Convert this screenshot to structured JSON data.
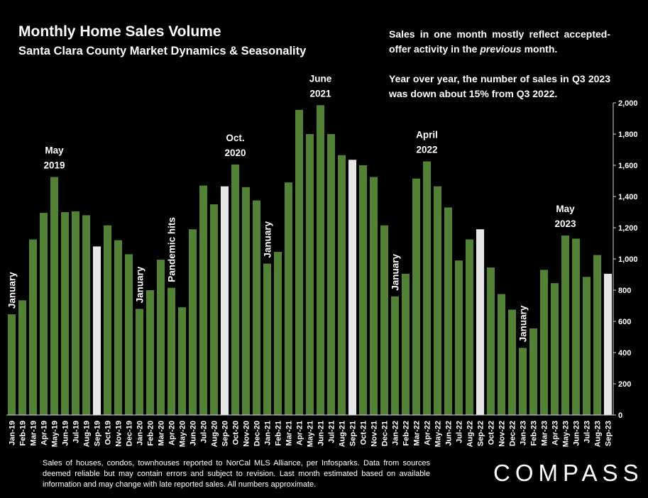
{
  "title": "Monthly Home Sales Volume",
  "subtitle": "Santa Clara County Market Dynamics & Seasonality",
  "note": {
    "p1_before": "Sales in one month mostly reflect accepted-offer activity in the ",
    "p1_em": "previous",
    "p1_after": " month.",
    "p2": "Year over year, the number of sales in Q3 2023 was down about 15% from Q3 2022."
  },
  "footnote": "Sales of houses, condos, townhouses reported to NorCal MLS Alliance, per Infosparks. Data from sources deemed reliable but may contain errors and subject to revision. Last month estimated based on available information and may change with late reported sales. All numbers approximate.",
  "brand": "COMPASS",
  "colors": {
    "bar": "#538135",
    "highlight": "#e6e6e6",
    "background": "#000000"
  },
  "chart_data": {
    "type": "bar",
    "title": "Monthly Home Sales Volume",
    "subtitle": "Santa Clara County Market Dynamics & Seasonality",
    "xlabel": "",
    "ylabel": "",
    "ylim": [
      0,
      2000
    ],
    "yticks": [
      "0",
      "200",
      "400",
      "600",
      "800",
      "1,000",
      "1,200",
      "1,400",
      "1,600",
      "1,800",
      "2,000"
    ],
    "grid": false,
    "axis_position": "right",
    "categories": [
      "Jan-19",
      "Feb-19",
      "Mar-19",
      "Apr-19",
      "May-19",
      "Jun-19",
      "Jul-19",
      "Aug-19",
      "Sep-19",
      "Oct-19",
      "Nov-19",
      "Dec-19",
      "Jan-20",
      "Feb-20",
      "Mar-20",
      "Apr-20",
      "May-20",
      "Jun-20",
      "Jul-20",
      "Aug-20",
      "Sep-20",
      "Oct-20",
      "Nov-20",
      "Dec-20",
      "Jan-21",
      "Feb-21",
      "Mar-21",
      "Apr-21",
      "May-21",
      "Jun-21",
      "Jul-21",
      "Aug-21",
      "Sep-21",
      "Oct-21",
      "Nov-21",
      "Dec-21",
      "Jan-22",
      "Feb-22",
      "Mar-22",
      "Apr-22",
      "May-22",
      "Jun-22",
      "Jul-22",
      "Aug-22",
      "Sep-22",
      "Oct-22",
      "Nov-22",
      "Dec-22",
      "Jan-23",
      "Feb-23",
      "Mar-23",
      "Apr-23",
      "May-23",
      "Jun-23",
      "Jul-23",
      "Aug-23",
      "Sep-23"
    ],
    "values": [
      645,
      735,
      1125,
      1295,
      1525,
      1300,
      1305,
      1280,
      1080,
      1215,
      1120,
      1030,
      680,
      800,
      995,
      815,
      690,
      1190,
      1470,
      1350,
      1465,
      1605,
      1460,
      1375,
      970,
      1045,
      1490,
      1955,
      1800,
      1985,
      1800,
      1665,
      1635,
      1600,
      1525,
      1215,
      760,
      905,
      1515,
      1625,
      1465,
      1330,
      990,
      1125,
      1190,
      945,
      775,
      675,
      430,
      555,
      930,
      845,
      1150,
      1130,
      885,
      1025,
      905
    ],
    "highlighted": [
      "Sep-19",
      "Sep-20",
      "Sep-21",
      "Sep-22",
      "Sep-23"
    ],
    "annotations": [
      {
        "category": "Jan-19",
        "text": "January",
        "orientation": "vertical"
      },
      {
        "category": "May-19",
        "text": "May 2019",
        "lines": [
          "May",
          "2019"
        ]
      },
      {
        "category": "Jan-20",
        "text": "January",
        "orientation": "vertical"
      },
      {
        "category": "Apr-20",
        "text": "Pandemic hits",
        "orientation": "vertical"
      },
      {
        "category": "Oct-20",
        "text": "Oct. 2020",
        "lines": [
          "Oct.",
          "2020"
        ]
      },
      {
        "category": "Jan-21",
        "text": "January",
        "orientation": "vertical"
      },
      {
        "category": "Jun-21",
        "text": "June 2021",
        "lines": [
          "June",
          "2021"
        ]
      },
      {
        "category": "Jan-22",
        "text": "January",
        "orientation": "vertical"
      },
      {
        "category": "Apr-22",
        "text": "April 2022",
        "lines": [
          "April",
          "2022"
        ]
      },
      {
        "category": "Jan-23",
        "text": "January",
        "orientation": "vertical"
      },
      {
        "category": "May-23",
        "text": "May 2023",
        "lines": [
          "May",
          "2023"
        ]
      }
    ]
  }
}
